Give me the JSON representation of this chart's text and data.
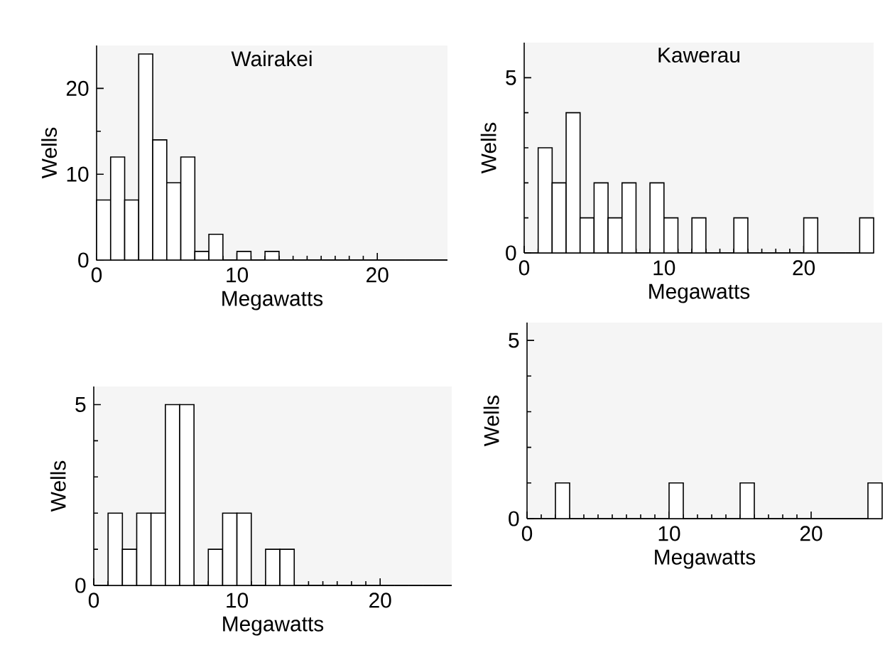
{
  "chart_data": [
    {
      "type": "histogram",
      "title": "Wairakei",
      "xlabel": "Megawatts",
      "ylabel": "Wells",
      "bins": [
        0,
        1,
        2,
        3,
        4,
        5,
        6,
        7,
        8,
        9,
        10,
        11,
        12,
        13,
        14,
        15,
        16,
        17,
        18,
        19,
        20,
        21,
        22,
        23,
        24,
        25
      ],
      "values": [
        7,
        12,
        7,
        24,
        14,
        9,
        12,
        1,
        3,
        0,
        1,
        0,
        1,
        0,
        0,
        0,
        0,
        0,
        0,
        0,
        0,
        0,
        0,
        0,
        0
      ],
      "color": "#ffffff",
      "xlim": [
        0,
        25
      ],
      "ylim": [
        0,
        25
      ],
      "xticks": [
        0,
        10,
        20
      ],
      "yticks": [
        0,
        10,
        20
      ]
    },
    {
      "type": "histogram",
      "title": "Kawerau",
      "xlabel": "Megawatts",
      "ylabel": "Wells",
      "bins": [
        0,
        1,
        2,
        3,
        4,
        5,
        6,
        7,
        8,
        9,
        10,
        11,
        12,
        13,
        14,
        15,
        16,
        17,
        18,
        19,
        20,
        21,
        22,
        23,
        24,
        25
      ],
      "values": [
        0,
        3,
        2,
        4,
        1,
        2,
        1,
        2,
        0,
        2,
        1,
        0,
        1,
        0,
        0,
        1,
        0,
        0,
        0,
        0,
        1,
        0,
        0,
        0,
        1
      ],
      "color": "#ffffff",
      "xlim": [
        0,
        25
      ],
      "ylim": [
        0,
        6
      ],
      "xticks": [
        0,
        10,
        20
      ],
      "yticks": [
        0,
        5
      ]
    },
    {
      "type": "histogram",
      "xlabel": "Megawatts",
      "ylabel": "Wells",
      "bins": [
        0,
        1,
        2,
        3,
        4,
        5,
        6,
        7,
        8,
        9,
        10,
        11,
        12,
        13,
        14,
        15,
        16,
        17,
        18,
        19,
        20,
        21,
        22,
        23,
        24,
        25
      ],
      "values": [
        0,
        2,
        1,
        2,
        2,
        5,
        5,
        0,
        1,
        2,
        2,
        0,
        1,
        1,
        0,
        0,
        0,
        0,
        0,
        0,
        0,
        0,
        0,
        0,
        0
      ],
      "color": "#ffffff",
      "xlim": [
        0,
        25
      ],
      "ylim": [
        0,
        5.5
      ],
      "xticks": [
        0,
        10,
        20
      ],
      "yticks": [
        0,
        5
      ]
    },
    {
      "type": "histogram",
      "xlabel": "Megawatts",
      "ylabel": "Wells",
      "bins": [
        0,
        1,
        2,
        3,
        4,
        5,
        6,
        7,
        8,
        9,
        10,
        11,
        12,
        13,
        14,
        15,
        16,
        17,
        18,
        19,
        20,
        21,
        22,
        23,
        24,
        25
      ],
      "values": [
        0,
        0,
        1,
        0,
        0,
        0,
        0,
        0,
        0,
        0,
        1,
        0,
        0,
        0,
        0,
        1,
        0,
        0,
        0,
        0,
        0,
        0,
        0,
        0,
        1
      ],
      "color": "#ffffff",
      "xlim": [
        0,
        25
      ],
      "ylim": [
        0,
        5.5
      ],
      "xticks": [
        0,
        10,
        20
      ],
      "yticks": [
        0,
        5
      ]
    }
  ]
}
